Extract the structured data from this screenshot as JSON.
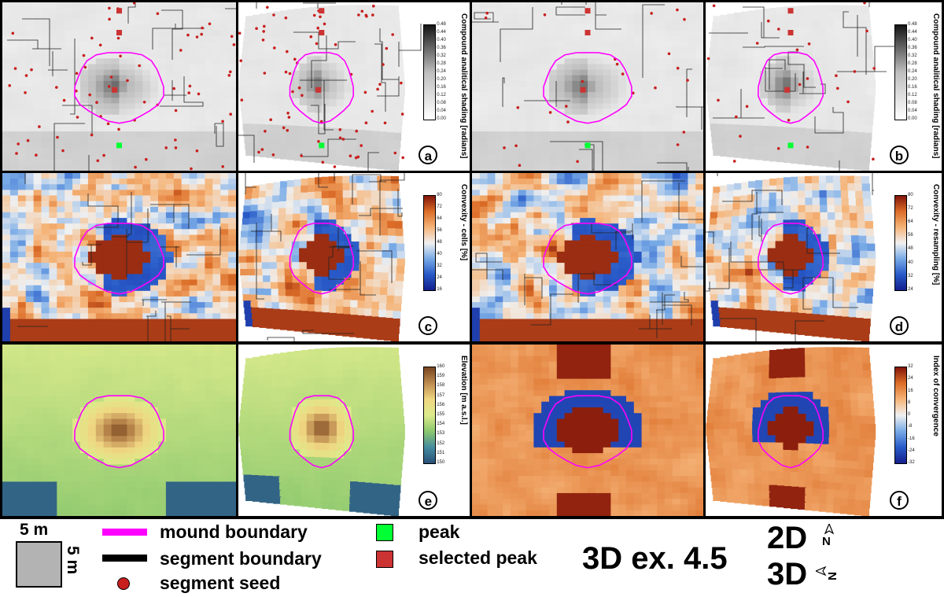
{
  "panels": [
    {
      "id": "a",
      "type": "shading-2d",
      "label": ""
    },
    {
      "id": "a3",
      "type": "shading-3d",
      "label": "a",
      "colorbar": {
        "title": "Compound analitical shading [radians]",
        "ticks": [
          "0.48",
          "0.44",
          "0.40",
          "0.36",
          "0.32",
          "0.28",
          "0.24",
          "0.20",
          "0.16",
          "0.12",
          "0.08",
          "0.04",
          "0.00"
        ]
      }
    },
    {
      "id": "b",
      "type": "shading-2d",
      "label": ""
    },
    {
      "id": "b3",
      "type": "shading-3d",
      "label": "b",
      "colorbar": {
        "title": "Compound analitical shading [radians]",
        "ticks": [
          "0.48",
          "0.44",
          "0.40",
          "0.36",
          "0.32",
          "0.28",
          "0.24",
          "0.20",
          "0.16",
          "0.12",
          "0.08",
          "0.04",
          "0.00"
        ]
      }
    },
    {
      "id": "c",
      "type": "convexity-2d",
      "label": ""
    },
    {
      "id": "c3",
      "type": "convexity-3d",
      "label": "c",
      "colorbar": {
        "title": "Convexity - cells [%]",
        "ticks": [
          "80",
          "72",
          "64",
          "56",
          "48",
          "40",
          "32",
          "24",
          "16"
        ]
      }
    },
    {
      "id": "d",
      "type": "convexity-2d",
      "label": ""
    },
    {
      "id": "d3",
      "type": "convexity-3d",
      "label": "d",
      "colorbar": {
        "title": "Convexity - resampling [%]",
        "ticks": [
          "80",
          "72",
          "64",
          "56",
          "48",
          "40",
          "32",
          "24"
        ]
      }
    },
    {
      "id": "e",
      "type": "elevation-2d",
      "label": ""
    },
    {
      "id": "e3",
      "type": "elevation-3d",
      "label": "e",
      "colorbar": {
        "title": "Elevation [m a.s.l.]",
        "ticks": [
          "160",
          "159",
          "158",
          "157",
          "156",
          "155",
          "154",
          "153",
          "152",
          "151",
          "150"
        ]
      }
    },
    {
      "id": "f",
      "type": "convergence-2d",
      "label": ""
    },
    {
      "id": "f3",
      "type": "convergence-3d",
      "label": "f",
      "colorbar": {
        "title": "Index of convergence",
        "ticks": [
          "32",
          "24",
          "16",
          "8",
          "0",
          "-8",
          "-16",
          "-24",
          "-32"
        ]
      }
    }
  ],
  "colors": {
    "mound_boundary": "#ff00ff",
    "segment_boundary": "#000000",
    "segment_seed": "#c81e1e",
    "peak": "#00ff33",
    "selected_peak": "#cc3333",
    "scale_box": "#b3b3b3"
  },
  "legend": {
    "scale_horizontal": "5 m",
    "scale_vertical": "5 m",
    "mound_boundary": "mound boundary",
    "segment_boundary": "segment boundary",
    "segment_seed": "segment seed",
    "peak": "peak",
    "selected_peak": "selected peak",
    "exaggeration": "3D ex. 4.5",
    "view_2d": "2D",
    "view_3d": "3D",
    "north_2d": "N",
    "north_3d": "N"
  }
}
